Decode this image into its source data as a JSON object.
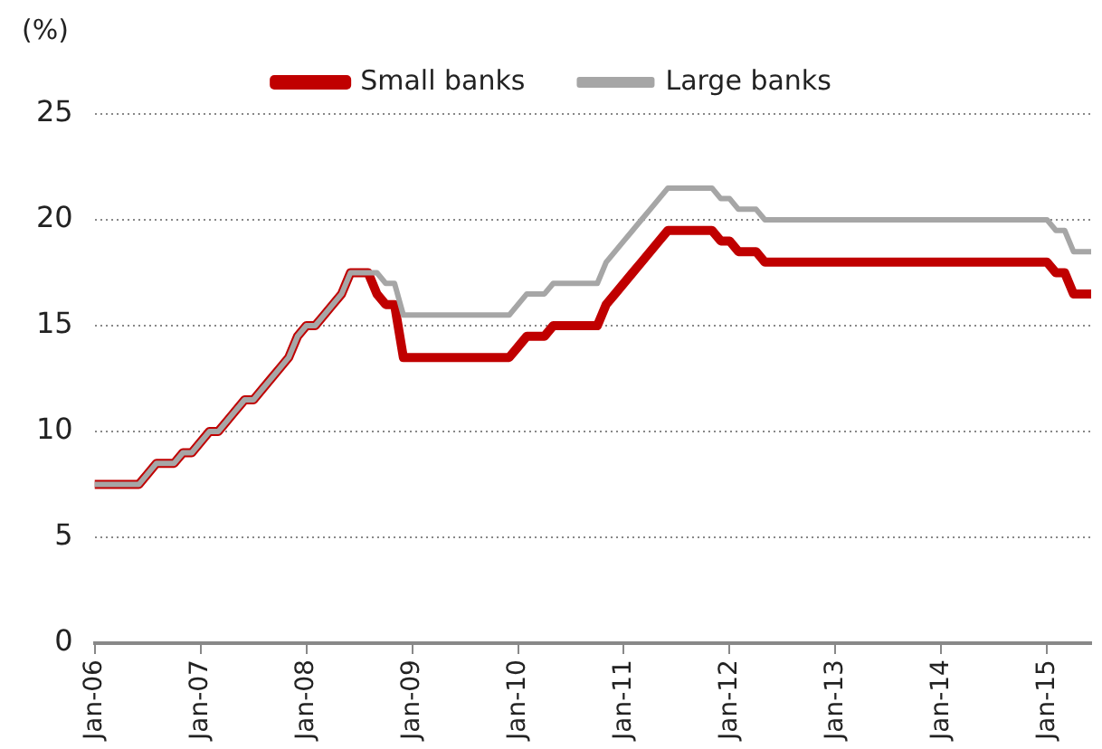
{
  "chart_data": {
    "type": "line",
    "ylabel": "(%)",
    "series": [
      {
        "name": "Small banks",
        "color": "#c00000",
        "x": [
          "2006-01",
          "2006-06",
          "2006-07",
          "2006-08",
          "2006-10",
          "2006-11",
          "2006-12",
          "2007-01",
          "2007-02",
          "2007-03",
          "2007-04",
          "2007-05",
          "2007-06",
          "2007-07",
          "2007-08",
          "2007-09",
          "2007-10",
          "2007-11",
          "2007-12",
          "2008-01",
          "2008-02",
          "2008-03",
          "2008-04",
          "2008-05",
          "2008-06",
          "2008-08",
          "2008-09",
          "2008-10",
          "2008-11",
          "2008-12",
          "2009-12",
          "2010-01",
          "2010-02",
          "2010-04",
          "2010-05",
          "2010-10",
          "2010-11",
          "2010-12",
          "2011-01",
          "2011-02",
          "2011-03",
          "2011-04",
          "2011-05",
          "2011-06",
          "2011-11",
          "2011-12",
          "2012-01",
          "2012-02",
          "2012-04",
          "2012-05",
          "2015-01",
          "2015-02",
          "2015-03",
          "2015-04",
          "2015-06"
        ],
        "values": [
          7.5,
          7.5,
          8,
          8.5,
          8.5,
          9,
          9,
          9.5,
          10,
          10,
          10.5,
          11,
          11.5,
          11.5,
          12,
          12.5,
          13,
          13.5,
          14.5,
          15,
          15,
          15.5,
          16,
          16.5,
          17.5,
          17.5,
          16.5,
          16,
          16,
          13.5,
          13.5,
          14,
          14.5,
          14.5,
          15,
          15,
          16,
          16.5,
          17,
          17.5,
          18,
          18.5,
          19,
          19.5,
          19.5,
          19,
          19,
          18.5,
          18.5,
          18,
          18,
          17.5,
          17.5,
          16.5,
          16.5
        ]
      },
      {
        "name": "Large banks",
        "color": "#a6a6a6",
        "x": [
          "2006-01",
          "2006-06",
          "2006-07",
          "2006-08",
          "2006-10",
          "2006-11",
          "2006-12",
          "2007-01",
          "2007-02",
          "2007-03",
          "2007-04",
          "2007-05",
          "2007-06",
          "2007-07",
          "2007-08",
          "2007-09",
          "2007-10",
          "2007-11",
          "2007-12",
          "2008-01",
          "2008-02",
          "2008-03",
          "2008-04",
          "2008-05",
          "2008-06",
          "2008-09",
          "2008-10",
          "2008-11",
          "2008-12",
          "2009-12",
          "2010-01",
          "2010-02",
          "2010-04",
          "2010-05",
          "2010-10",
          "2010-11",
          "2010-12",
          "2011-01",
          "2011-02",
          "2011-03",
          "2011-04",
          "2011-05",
          "2011-06",
          "2011-11",
          "2011-12",
          "2012-01",
          "2012-02",
          "2012-04",
          "2012-05",
          "2015-01",
          "2015-02",
          "2015-03",
          "2015-04",
          "2015-06"
        ],
        "values": [
          7.5,
          7.5,
          8,
          8.5,
          8.5,
          9,
          9,
          9.5,
          10,
          10,
          10.5,
          11,
          11.5,
          11.5,
          12,
          12.5,
          13,
          13.5,
          14.5,
          15,
          15,
          15.5,
          16,
          16.5,
          17.5,
          17.5,
          17,
          17,
          15.5,
          15.5,
          16,
          16.5,
          16.5,
          17,
          17,
          18,
          18.5,
          19,
          19.5,
          20,
          20.5,
          21,
          21.5,
          21.5,
          21,
          21,
          20.5,
          20.5,
          20,
          20,
          19.5,
          19.5,
          18.5,
          18.5
        ]
      }
    ],
    "xlim": [
      "2006-01",
      "2015-06"
    ],
    "xticks": [
      {
        "value": "2006-01",
        "label": "Jan-06"
      },
      {
        "value": "2007-01",
        "label": "Jan-07"
      },
      {
        "value": "2008-01",
        "label": "Jan-08"
      },
      {
        "value": "2009-01",
        "label": "Jan-09"
      },
      {
        "value": "2010-01",
        "label": "Jan-10"
      },
      {
        "value": "2011-01",
        "label": "Jan-11"
      },
      {
        "value": "2012-01",
        "label": "Jan-12"
      },
      {
        "value": "2013-01",
        "label": "Jan-13"
      },
      {
        "value": "2014-01",
        "label": "Jan-14"
      },
      {
        "value": "2015-01",
        "label": "Jan-15"
      }
    ],
    "ylim": [
      0,
      25
    ],
    "yticks": [
      0,
      5,
      10,
      15,
      20,
      25
    ],
    "grid": "y",
    "legend": "top",
    "marker": "none",
    "line_style": "solid"
  }
}
